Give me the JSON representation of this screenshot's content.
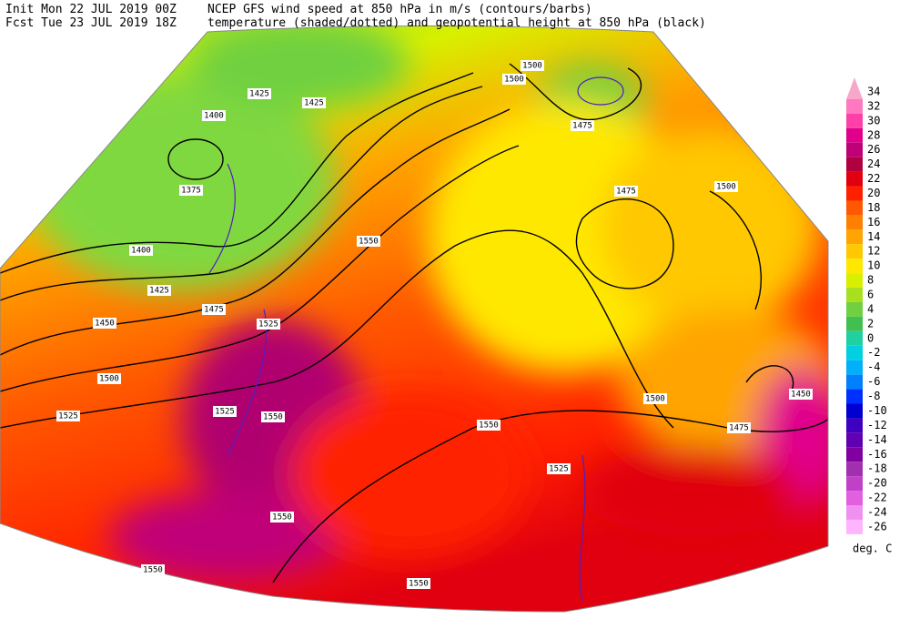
{
  "header": {
    "init": "Init  Mon 22 JUL 2019 00Z",
    "fcst": "Fcst Tue 23 JUL 2019 18Z",
    "title_line1": "NCEP GFS wind speed at 850 hPa in m/s (contours/barbs)",
    "title_line2": "temperature (shaded/dotted) and geopotential height at 850 hPa (black)"
  },
  "colorbar": {
    "unit": "deg. C",
    "levels": [
      {
        "label": "34",
        "color": "#f7a8c8"
      },
      {
        "label": "32",
        "color": "#ff78c0"
      },
      {
        "label": "30",
        "color": "#ff40a8"
      },
      {
        "label": "28",
        "color": "#e0008c"
      },
      {
        "label": "26",
        "color": "#c00078"
      },
      {
        "label": "24",
        "color": "#b00040"
      },
      {
        "label": "22",
        "color": "#e00010"
      },
      {
        "label": "20",
        "color": "#ff2000"
      },
      {
        "label": "18",
        "color": "#ff5800"
      },
      {
        "label": "16",
        "color": "#ff8000"
      },
      {
        "label": "14",
        "color": "#ffa400"
      },
      {
        "label": "12",
        "color": "#ffc800"
      },
      {
        "label": "10",
        "color": "#ffe800"
      },
      {
        "label": "8",
        "color": "#d8f000"
      },
      {
        "label": "6",
        "color": "#a8e020"
      },
      {
        "label": "4",
        "color": "#70d040"
      },
      {
        "label": "2",
        "color": "#40c050"
      },
      {
        "label": "0",
        "color": "#20d0a0"
      },
      {
        "label": "-2",
        "color": "#00d0e0"
      },
      {
        "label": "-4",
        "color": "#00b0f8"
      },
      {
        "label": "-6",
        "color": "#0080ff"
      },
      {
        "label": "-8",
        "color": "#0030ff"
      },
      {
        "label": "-10",
        "color": "#0000d0"
      },
      {
        "label": "-12",
        "color": "#4000c0"
      },
      {
        "label": "-14",
        "color": "#6000b0"
      },
      {
        "label": "-16",
        "color": "#8000a0"
      },
      {
        "label": "-18",
        "color": "#a030b0"
      },
      {
        "label": "-20",
        "color": "#c040c8"
      },
      {
        "label": "-22",
        "color": "#e060e0"
      },
      {
        "label": "-24",
        "color": "#f090f0"
      },
      {
        "label": "-26",
        "color": "#ffb4ff"
      }
    ]
  },
  "contour_labels": [
    "1425",
    "1425",
    "1400",
    "1375",
    "1400",
    "1425",
    "1450",
    "1475",
    "1500",
    "1525",
    "1550",
    "1500",
    "1500",
    "1475",
    "1475",
    "1500",
    "1500",
    "1450",
    "1475",
    "1550",
    "1525",
    "1525",
    "1550",
    "1550",
    "1550",
    "1550",
    "1525"
  ]
}
